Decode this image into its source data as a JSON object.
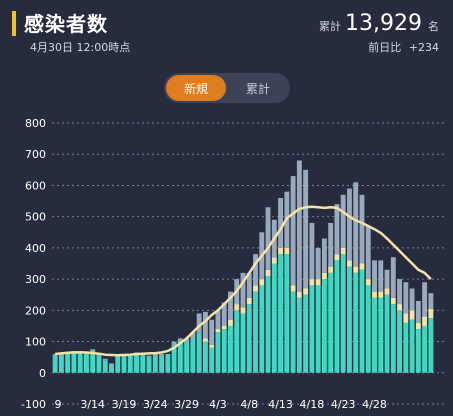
{
  "header": {
    "title": "感染者数",
    "date": "4月30日 12:00時点",
    "total_label": "累計",
    "total_value": "13,929",
    "total_unit": "名",
    "prev_label": "前日比",
    "prev_value": "+234"
  },
  "toggle": {
    "options": [
      "新規",
      "累計"
    ],
    "active": "新規"
  },
  "colors": {
    "background": "#262b3e",
    "accent": "#f0c419",
    "toggle_active": "#e07d1e",
    "series_teal": "#3fd9c3",
    "series_yellow": "#f2e3a6",
    "series_gray": "#9aa9bd",
    "average_line": "#f2e3a6",
    "grid": "#7a8094"
  },
  "chart_data": {
    "type": "bar",
    "stacked": true,
    "ylim": [
      -100,
      800
    ],
    "yticks": [
      -100,
      0,
      100,
      200,
      300,
      400,
      500,
      600,
      700,
      800
    ],
    "grid": true,
    "x_tick_labels": [
      "9",
      "3/14",
      "3/19",
      "3/24",
      "3/29",
      "4/3",
      "4/8",
      "4/13",
      "4/18",
      "4/23",
      "4/28"
    ],
    "series": [
      {
        "values": [
          55,
          55,
          60,
          65,
          62,
          60,
          70,
          55,
          40,
          25,
          55,
          50,
          55,
          60,
          55,
          50,
          55,
          55,
          60,
          90,
          100,
          100,
          110,
          130,
          100,
          80,
          130,
          140,
          150,
          200,
          190,
          220,
          260,
          280,
          310,
          350,
          380,
          380,
          260,
          240,
          250,
          280,
          280,
          300,
          320,
          360,
          380,
          340,
          320,
          330,
          280,
          240,
          240,
          250,
          220,
          200,
          160,
          170,
          140,
          150,
          175
        ]
      },
      {
        "values": [
          0,
          0,
          0,
          0,
          0,
          0,
          0,
          0,
          0,
          0,
          0,
          0,
          0,
          0,
          0,
          0,
          0,
          0,
          0,
          0,
          0,
          0,
          0,
          0,
          10,
          10,
          10,
          10,
          20,
          20,
          20,
          20,
          20,
          20,
          20,
          20,
          20,
          20,
          20,
          20,
          20,
          20,
          20,
          20,
          20,
          20,
          20,
          20,
          20,
          20,
          20,
          20,
          20,
          20,
          20,
          20,
          30,
          30,
          20,
          30,
          30
        ]
      },
      {
        "values": [
          5,
          5,
          0,
          5,
          5,
          5,
          5,
          5,
          5,
          5,
          0,
          5,
          5,
          5,
          5,
          5,
          5,
          5,
          0,
          10,
          10,
          10,
          20,
          60,
          85,
          80,
          60,
          75,
          90,
          80,
          110,
          80,
          100,
          150,
          200,
          120,
          160,
          180,
          350,
          420,
          380,
          180,
          100,
          110,
          140,
          160,
          170,
          230,
          270,
          220,
          170,
          100,
          100,
          60,
          130,
          80,
          100,
          70,
          70,
          110,
          50
        ]
      }
    ],
    "average": [
      60,
      62,
      64,
      65,
      66,
      65,
      63,
      61,
      58,
      57,
      56,
      57,
      58,
      60,
      61,
      62,
      63,
      65,
      70,
      80,
      95,
      110,
      130,
      150,
      165,
      185,
      200,
      220,
      240,
      262,
      290,
      320,
      350,
      375,
      400,
      430,
      460,
      495,
      510,
      525,
      530,
      532,
      530,
      528,
      530,
      528,
      515,
      500,
      488,
      480,
      470,
      460,
      448,
      430,
      410,
      390,
      370,
      350,
      330,
      320,
      300
    ]
  }
}
